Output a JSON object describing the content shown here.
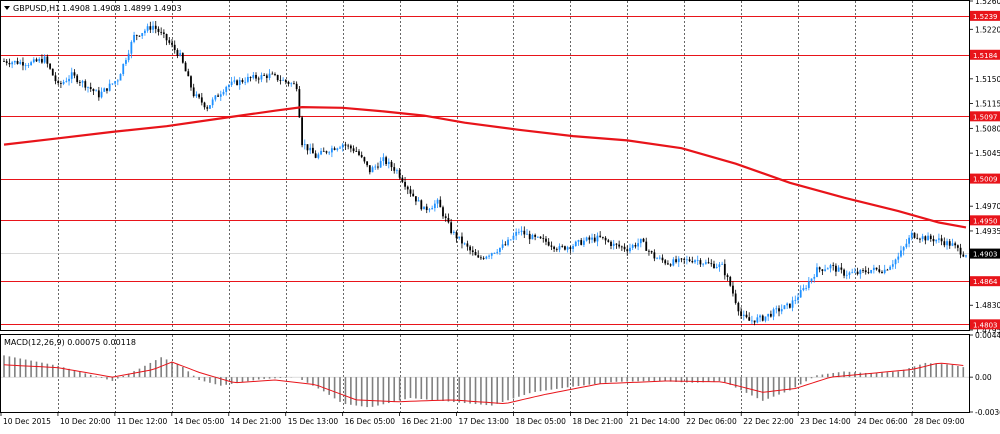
{
  "header": {
    "symbol_label": "GBPUSD,H1",
    "ohlc_label": "1.4908 1.4908 1.4899 1.4903"
  },
  "macd_header": {
    "label": "MACD(12,26,9) 0.00075 0.00118"
  },
  "colors": {
    "bull": "#1e90ff",
    "bear": "#000000",
    "ma": "#e8141a",
    "level": "#e8141a",
    "grid": "#000000",
    "macd_hist": "#808080",
    "macd_signal": "#e8141a"
  },
  "chart_data": [
    {
      "type": "candlestick",
      "ylim": [
        1.4795,
        1.526
      ],
      "y_ticks": [
        "1.5260",
        "1.5220",
        "1.5185",
        "1.5150",
        "1.5115",
        "1.5080",
        "1.5045",
        "1.5010",
        "1.4970",
        "1.4935",
        "1.4900",
        "1.4865",
        "1.4830",
        "1.4795"
      ],
      "x_ticks": [
        "10 Dec 2015",
        "10 Dec 20:00",
        "11 Dec 12:00",
        "14 Dec 05:00",
        "14 Dec 21:00",
        "15 Dec 13:00",
        "16 Dec 05:00",
        "16 Dec 21:00",
        "17 Dec 13:00",
        "18 Dec 05:00",
        "18 Dec 21:00",
        "21 Dec 14:00",
        "22 Dec 06:00",
        "22 Dec 22:00",
        "23 Dec 14:00",
        "24 Dec 06:00",
        "28 Dec 09:00"
      ],
      "levels": [
        {
          "label": "1.5239",
          "value": 1.5239
        },
        {
          "label": "1.5184",
          "value": 1.5184
        },
        {
          "label": "1.5097",
          "value": 1.5097
        },
        {
          "label": "1.5009",
          "value": 1.5009
        },
        {
          "label": "1.4950",
          "value": 1.495
        },
        {
          "label": "1.4864",
          "value": 1.4864
        },
        {
          "label": "1.4803",
          "value": 1.4803
        }
      ],
      "current_price": {
        "label": "1.4903",
        "value": 1.4903
      },
      "anchors": [
        [
          0,
          1.5175
        ],
        [
          10,
          1.5172
        ],
        [
          15,
          1.5178
        ],
        [
          20,
          1.514
        ],
        [
          25,
          1.5155
        ],
        [
          30,
          1.5142
        ],
        [
          35,
          1.5127
        ],
        [
          42,
          1.515
        ],
        [
          48,
          1.521
        ],
        [
          55,
          1.5225
        ],
        [
          60,
          1.5205
        ],
        [
          65,
          1.5182
        ],
        [
          70,
          1.5128
        ],
        [
          75,
          1.511
        ],
        [
          82,
          1.514
        ],
        [
          90,
          1.515
        ],
        [
          98,
          1.5155
        ],
        [
          108,
          1.514
        ],
        [
          110,
          1.506
        ],
        [
          115,
          1.504
        ],
        [
          120,
          1.505
        ],
        [
          125,
          1.5058
        ],
        [
          130,
          1.5048
        ],
        [
          135,
          1.502
        ],
        [
          140,
          1.5035
        ],
        [
          145,
          1.502
        ],
        [
          150,
          1.499
        ],
        [
          155,
          1.4965
        ],
        [
          160,
          1.4975
        ],
        [
          165,
          1.4935
        ],
        [
          170,
          1.4915
        ],
        [
          175,
          1.4895
        ],
        [
          180,
          1.4905
        ],
        [
          185,
          1.4915
        ],
        [
          190,
          1.4935
        ],
        [
          195,
          1.4925
        ],
        [
          200,
          1.492
        ],
        [
          205,
          1.491
        ],
        [
          210,
          1.4915
        ],
        [
          215,
          1.4922
        ],
        [
          220,
          1.4925
        ],
        [
          225,
          1.4915
        ],
        [
          230,
          1.491
        ],
        [
          235,
          1.492
        ],
        [
          240,
          1.4898
        ],
        [
          245,
          1.489
        ],
        [
          250,
          1.4892
        ],
        [
          255,
          1.4895
        ],
        [
          260,
          1.4888
        ],
        [
          265,
          1.4885
        ],
        [
          268,
          1.4858
        ],
        [
          272,
          1.4815
        ],
        [
          275,
          1.4808
        ],
        [
          280,
          1.4812
        ],
        [
          285,
          1.4822
        ],
        [
          290,
          1.483
        ],
        [
          295,
          1.4852
        ],
        [
          300,
          1.488
        ],
        [
          305,
          1.4885
        ],
        [
          310,
          1.4875
        ],
        [
          315,
          1.4875
        ],
        [
          320,
          1.488
        ],
        [
          325,
          1.488
        ],
        [
          330,
          1.4898
        ],
        [
          335,
          1.493
        ],
        [
          340,
          1.4925
        ],
        [
          345,
          1.4922
        ],
        [
          350,
          1.4915
        ],
        [
          354,
          1.4903
        ]
      ],
      "ma_points": [
        [
          0,
          1.5057
        ],
        [
          20,
          1.5066
        ],
        [
          40,
          1.5075
        ],
        [
          60,
          1.5083
        ],
        [
          80,
          1.5094
        ],
        [
          100,
          1.5105
        ],
        [
          110,
          1.511
        ],
        [
          125,
          1.5109
        ],
        [
          140,
          1.5104
        ],
        [
          155,
          1.5098
        ],
        [
          170,
          1.5088
        ],
        [
          190,
          1.5078
        ],
        [
          210,
          1.5069
        ],
        [
          230,
          1.5063
        ],
        [
          250,
          1.5052
        ],
        [
          270,
          1.503
        ],
        [
          290,
          1.5003
        ],
        [
          310,
          1.4982
        ],
        [
          330,
          1.4963
        ],
        [
          345,
          1.4947
        ],
        [
          355,
          1.494
        ]
      ]
    },
    {
      "type": "bar",
      "name": "MACD(12,26,9)",
      "ylim": [
        -0.00368,
        0.00445
      ],
      "y_ticks": [
        "0.00445",
        "0.00",
        "-0.00368"
      ],
      "hist_anchors": [
        [
          0,
          0.0023
        ],
        [
          20,
          0.0012
        ],
        [
          40,
          -0.0004
        ],
        [
          50,
          0.0009
        ],
        [
          58,
          0.0021
        ],
        [
          65,
          0.0013
        ],
        [
          72,
          -0.0003
        ],
        [
          80,
          -0.0009
        ],
        [
          95,
          -0.0002
        ],
        [
          108,
          0.0
        ],
        [
          118,
          -0.0015
        ],
        [
          125,
          -0.0028
        ],
        [
          135,
          -0.0032
        ],
        [
          150,
          -0.0022
        ],
        [
          165,
          -0.0026
        ],
        [
          180,
          -0.003
        ],
        [
          195,
          -0.0016
        ],
        [
          210,
          -0.001
        ],
        [
          225,
          -0.0005
        ],
        [
          240,
          -0.0004
        ],
        [
          255,
          -0.0006
        ],
        [
          265,
          -0.0004
        ],
        [
          275,
          -0.0018
        ],
        [
          280,
          -0.0025
        ],
        [
          290,
          -0.0014
        ],
        [
          300,
          0.0002
        ],
        [
          310,
          0.0006
        ],
        [
          320,
          0.0004
        ],
        [
          330,
          0.0006
        ],
        [
          340,
          0.0015
        ],
        [
          350,
          0.0013
        ],
        [
          355,
          0.001
        ]
      ],
      "signal_anchors": [
        [
          0,
          0.0013
        ],
        [
          20,
          0.001
        ],
        [
          40,
          0.0
        ],
        [
          55,
          0.0008
        ],
        [
          62,
          0.0016
        ],
        [
          72,
          0.0005
        ],
        [
          85,
          -0.0006
        ],
        [
          100,
          -0.0003
        ],
        [
          115,
          -0.0008
        ],
        [
          130,
          -0.0024
        ],
        [
          145,
          -0.0026
        ],
        [
          165,
          -0.0024
        ],
        [
          185,
          -0.0028
        ],
        [
          200,
          -0.0018
        ],
        [
          220,
          -0.0007
        ],
        [
          245,
          -0.0004
        ],
        [
          265,
          -0.0005
        ],
        [
          280,
          -0.0016
        ],
        [
          292,
          -0.0012
        ],
        [
          305,
          0.0
        ],
        [
          320,
          0.0004
        ],
        [
          335,
          0.0008
        ],
        [
          345,
          0.0015
        ],
        [
          355,
          0.0012
        ]
      ]
    }
  ]
}
